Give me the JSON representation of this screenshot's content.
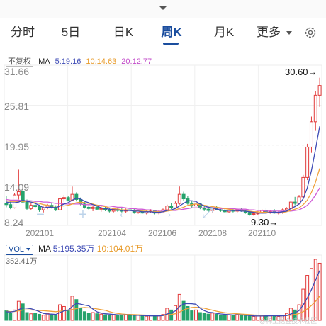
{
  "tabs": [
    {
      "label": "分时",
      "active": false
    },
    {
      "label": "5日",
      "active": false
    },
    {
      "label": "日K",
      "active": false
    },
    {
      "label": "周K",
      "active": true
    },
    {
      "label": "月K",
      "active": false
    },
    {
      "label": "更多",
      "active": false
    }
  ],
  "legend": {
    "adjust": "不复权",
    "ma_label": "MA",
    "ma5": "5:19.16",
    "ma10": "10:14.63",
    "ma20": "20:12.77"
  },
  "y_axis": [
    "31.66",
    "25.81",
    "19.95",
    "14.09",
    "8.24"
  ],
  "x_axis": [
    "202101",
    "202104",
    "202106",
    "202108",
    "202110"
  ],
  "annotations": {
    "high": "30.60→",
    "low": "9.30→"
  },
  "volume": {
    "tag": "VOL",
    "ma_label": "MA",
    "ma5": "5:195.35万",
    "ma10": "10:104.01万",
    "max": "352.41万"
  },
  "colors": {
    "up": "#e23b3b",
    "down": "#26a36c",
    "ma5": "#3e4bb5",
    "ma10": "#f0a23b",
    "ma20": "#d05bd6",
    "accent": "#1a4d9e"
  },
  "icons": [
    "chevron-down-icon",
    "settings-gear-icon",
    "zoom-out-icon",
    "zoom-in-icon",
    "move-left-icon",
    "move-right-icon",
    "fullscreen-icon"
  ],
  "watermark": "@稀土掘金技术社区",
  "chart_data": {
    "type": "candlestick",
    "price_ylim": [
      8.24,
      31.66
    ],
    "candles": [
      [
        11.2,
        12.4,
        10.6,
        11.0
      ],
      [
        11.0,
        11.6,
        10.3,
        10.5
      ],
      [
        10.5,
        12.8,
        10.4,
        12.5
      ],
      [
        12.5,
        16.4,
        11.8,
        13.0
      ],
      [
        13.0,
        13.4,
        11.2,
        11.4
      ],
      [
        11.4,
        11.8,
        10.2,
        10.4
      ],
      [
        10.4,
        11.3,
        10.1,
        10.9
      ],
      [
        10.9,
        11.6,
        10.5,
        10.7
      ],
      [
        10.7,
        11.0,
        9.9,
        10.2
      ],
      [
        10.2,
        10.7,
        9.8,
        10.5
      ],
      [
        10.5,
        11.1,
        10.3,
        10.9
      ],
      [
        10.9,
        11.2,
        10.4,
        10.6
      ],
      [
        10.6,
        10.9,
        10.0,
        10.2
      ],
      [
        10.2,
        12.3,
        10.1,
        11.9
      ],
      [
        11.9,
        12.5,
        11.4,
        12.1
      ],
      [
        12.1,
        12.4,
        11.5,
        11.7
      ],
      [
        11.7,
        13.8,
        11.6,
        12.6
      ],
      [
        12.6,
        12.9,
        11.5,
        11.8
      ],
      [
        11.8,
        12.1,
        10.9,
        11.1
      ],
      [
        11.1,
        11.4,
        10.4,
        10.6
      ],
      [
        10.6,
        10.9,
        10.1,
        10.4
      ],
      [
        10.4,
        10.8,
        10.0,
        10.6
      ],
      [
        10.6,
        11.0,
        10.2,
        10.3
      ],
      [
        10.3,
        10.7,
        9.9,
        10.4
      ],
      [
        10.4,
        10.7,
        10.0,
        10.2
      ],
      [
        10.2,
        10.5,
        9.8,
        10.0
      ],
      [
        10.0,
        10.4,
        9.8,
        10.3
      ],
      [
        10.3,
        10.6,
        9.9,
        10.1
      ],
      [
        10.1,
        10.5,
        9.8,
        10.0
      ],
      [
        10.0,
        10.4,
        9.7,
        10.2
      ],
      [
        10.2,
        10.6,
        9.9,
        10.1
      ],
      [
        10.1,
        10.4,
        9.6,
        9.8
      ],
      [
        9.8,
        10.2,
        9.6,
        10.0
      ],
      [
        10.0,
        10.3,
        9.6,
        9.7
      ],
      [
        9.7,
        10.1,
        9.5,
        9.9
      ],
      [
        9.9,
        10.3,
        9.7,
        10.0
      ],
      [
        10.0,
        10.2,
        9.5,
        9.7
      ],
      [
        9.7,
        10.1,
        9.5,
        9.9
      ],
      [
        9.9,
        10.4,
        9.8,
        10.2
      ],
      [
        10.2,
        11.0,
        10.0,
        10.8
      ],
      [
        10.8,
        11.2,
        10.3,
        10.5
      ],
      [
        10.5,
        11.5,
        10.4,
        11.2
      ],
      [
        11.2,
        13.8,
        11.0,
        12.6
      ],
      [
        12.6,
        13.0,
        11.6,
        11.9
      ],
      [
        11.9,
        12.3,
        11.0,
        11.2
      ],
      [
        11.2,
        11.6,
        10.5,
        10.8
      ],
      [
        10.8,
        11.4,
        10.4,
        11.1
      ],
      [
        11.1,
        11.3,
        10.3,
        10.5
      ],
      [
        10.5,
        10.8,
        10.0,
        10.3
      ],
      [
        10.3,
        10.7,
        9.9,
        10.1
      ],
      [
        10.1,
        10.5,
        9.8,
        10.4
      ],
      [
        10.4,
        10.8,
        10.1,
        10.2
      ],
      [
        10.2,
        10.5,
        9.9,
        10.1
      ],
      [
        10.1,
        10.4,
        9.7,
        9.9
      ],
      [
        9.9,
        10.3,
        9.7,
        10.1
      ],
      [
        10.1,
        10.4,
        9.8,
        10.0
      ],
      [
        10.0,
        10.4,
        9.8,
        10.2
      ],
      [
        10.2,
        10.5,
        9.9,
        10.0
      ],
      [
        10.0,
        10.2,
        9.6,
        9.8
      ],
      [
        9.8,
        10.0,
        9.3,
        9.5
      ],
      [
        9.5,
        9.8,
        9.3,
        9.6
      ],
      [
        9.6,
        10.0,
        9.4,
        9.7
      ],
      [
        9.7,
        10.3,
        9.6,
        10.1
      ],
      [
        10.1,
        10.5,
        9.7,
        9.9
      ],
      [
        9.9,
        10.2,
        9.6,
        10.0
      ],
      [
        10.0,
        10.3,
        9.6,
        9.7
      ],
      [
        9.7,
        10.0,
        9.5,
        9.8
      ],
      [
        9.8,
        10.4,
        9.6,
        10.2
      ],
      [
        10.2,
        10.6,
        9.9,
        10.4
      ],
      [
        10.4,
        11.6,
        10.3,
        11.4
      ],
      [
        11.4,
        12.2,
        10.9,
        11.2
      ],
      [
        11.2,
        12.5,
        11.0,
        12.2
      ],
      [
        12.2,
        15.6,
        12.0,
        15.2
      ],
      [
        15.2,
        20.4,
        14.8,
        19.9
      ],
      [
        19.9,
        24.6,
        19.0,
        23.8
      ],
      [
        23.8,
        28.5,
        22.4,
        27.9
      ],
      [
        27.9,
        30.6,
        26.1,
        29.4
      ]
    ],
    "ma5": [
      11.4,
      11.3,
      11.3,
      11.4,
      11.7,
      11.5,
      11.4,
      11.2,
      10.9,
      10.5,
      10.6,
      10.6,
      10.5,
      10.8,
      11.1,
      11.3,
      11.7,
      12.0,
      11.9,
      11.5,
      11.3,
      11.0,
      10.8,
      10.5,
      10.4,
      10.3,
      10.2,
      10.2,
      10.1,
      10.1,
      10.1,
      10.0,
      10.0,
      9.9,
      9.9,
      9.9,
      9.8,
      9.8,
      9.9,
      10.1,
      10.2,
      10.4,
      10.8,
      11.2,
      11.6,
      11.6,
      11.5,
      11.1,
      10.8,
      10.6,
      10.5,
      10.3,
      10.2,
      10.1,
      10.1,
      10.1,
      10.1,
      10.0,
      10.0,
      9.9,
      9.8,
      9.7,
      9.7,
      9.7,
      9.8,
      9.8,
      9.8,
      9.9,
      10.0,
      10.4,
      10.7,
      11.1,
      11.9,
      13.6,
      16.3,
      19.6,
      23.1
    ],
    "ma10": [
      11.6,
      11.5,
      11.5,
      11.5,
      11.5,
      11.5,
      11.4,
      11.3,
      11.2,
      11.0,
      10.9,
      10.8,
      10.8,
      10.8,
      10.8,
      10.9,
      11.1,
      11.3,
      11.4,
      11.3,
      11.2,
      11.1,
      10.9,
      10.8,
      10.7,
      10.5,
      10.4,
      10.3,
      10.2,
      10.2,
      10.1,
      10.1,
      10.1,
      10.0,
      10.0,
      9.9,
      9.9,
      9.9,
      9.9,
      10.0,
      10.1,
      10.2,
      10.4,
      10.6,
      10.9,
      11.0,
      11.1,
      11.0,
      10.9,
      10.8,
      10.7,
      10.6,
      10.5,
      10.4,
      10.3,
      10.2,
      10.1,
      10.1,
      10.0,
      10.0,
      9.9,
      9.9,
      9.8,
      9.8,
      9.8,
      9.8,
      9.8,
      9.8,
      9.9,
      10.1,
      10.3,
      10.5,
      11.0,
      11.7,
      12.9,
      14.5,
      16.6
    ],
    "ma20": [
      11.8,
      11.7,
      11.7,
      11.7,
      11.6,
      11.6,
      11.6,
      11.5,
      11.5,
      11.4,
      11.4,
      11.3,
      11.2,
      11.2,
      11.1,
      11.1,
      11.1,
      11.1,
      11.1,
      11.0,
      11.0,
      11.0,
      10.9,
      10.9,
      10.8,
      10.8,
      10.7,
      10.6,
      10.6,
      10.5,
      10.4,
      10.4,
      10.3,
      10.3,
      10.2,
      10.2,
      10.1,
      10.1,
      10.1,
      10.1,
      10.1,
      10.1,
      10.2,
      10.3,
      10.4,
      10.5,
      10.5,
      10.5,
      10.5,
      10.5,
      10.5,
      10.5,
      10.4,
      10.4,
      10.4,
      10.4,
      10.3,
      10.3,
      10.3,
      10.2,
      10.2,
      10.1,
      10.1,
      10.0,
      10.0,
      10.0,
      10.0,
      10.0,
      10.0,
      10.0,
      10.1,
      10.2,
      10.5,
      10.9,
      11.6,
      12.5,
      13.6
    ],
    "volume": [
      55,
      40,
      60,
      110,
      95,
      45,
      38,
      42,
      35,
      30,
      40,
      35,
      30,
      90,
      80,
      60,
      140,
      120,
      70,
      50,
      40,
      45,
      38,
      36,
      32,
      30,
      34,
      28,
      30,
      33,
      28,
      26,
      30,
      25,
      24,
      28,
      25,
      26,
      34,
      70,
      60,
      85,
      150,
      110,
      80,
      55,
      60,
      45,
      40,
      36,
      42,
      35,
      30,
      28,
      32,
      30,
      34,
      28,
      26,
      24,
      22,
      25,
      30,
      28,
      26,
      24,
      22,
      30,
      40,
      70,
      60,
      90,
      180,
      260,
      300,
      352.41,
      330
    ],
    "vol_ma5": [
      50,
      48,
      52,
      62,
      72,
      70,
      67,
      60,
      51,
      40,
      37,
      36,
      34,
      45,
      55,
      59,
      80,
      98,
      94,
      88,
      84,
      65,
      49,
      42,
      38,
      36,
      34,
      32,
      31,
      31,
      31,
      29,
      29,
      28,
      27,
      26,
      26,
      26,
      28,
      37,
      43,
      55,
      80,
      95,
      97,
      96,
      93,
      70,
      56,
      47,
      45,
      40,
      37,
      35,
      33,
      31,
      32,
      31,
      30,
      28,
      26,
      25,
      25,
      26,
      26,
      27,
      26,
      26,
      28,
      37,
      44,
      56,
      88,
      130,
      178,
      233,
      288
    ],
    "vol_ma10": [
      52,
      51,
      51,
      55,
      60,
      60,
      60,
      59,
      57,
      56,
      54,
      52,
      50,
      53,
      56,
      58,
      62,
      68,
      72,
      74,
      72,
      70,
      66,
      62,
      58,
      50,
      44,
      40,
      37,
      35,
      34,
      33,
      32,
      31,
      30,
      29,
      29,
      28,
      28,
      32,
      34,
      38,
      48,
      60,
      69,
      74,
      76,
      73,
      70,
      64,
      59,
      53,
      48,
      44,
      42,
      40,
      38,
      36,
      35,
      33,
      31,
      30,
      29,
      28,
      28,
      27,
      27,
      27,
      27,
      30,
      34,
      39,
      50,
      66,
      86,
      110,
      140
    ]
  }
}
